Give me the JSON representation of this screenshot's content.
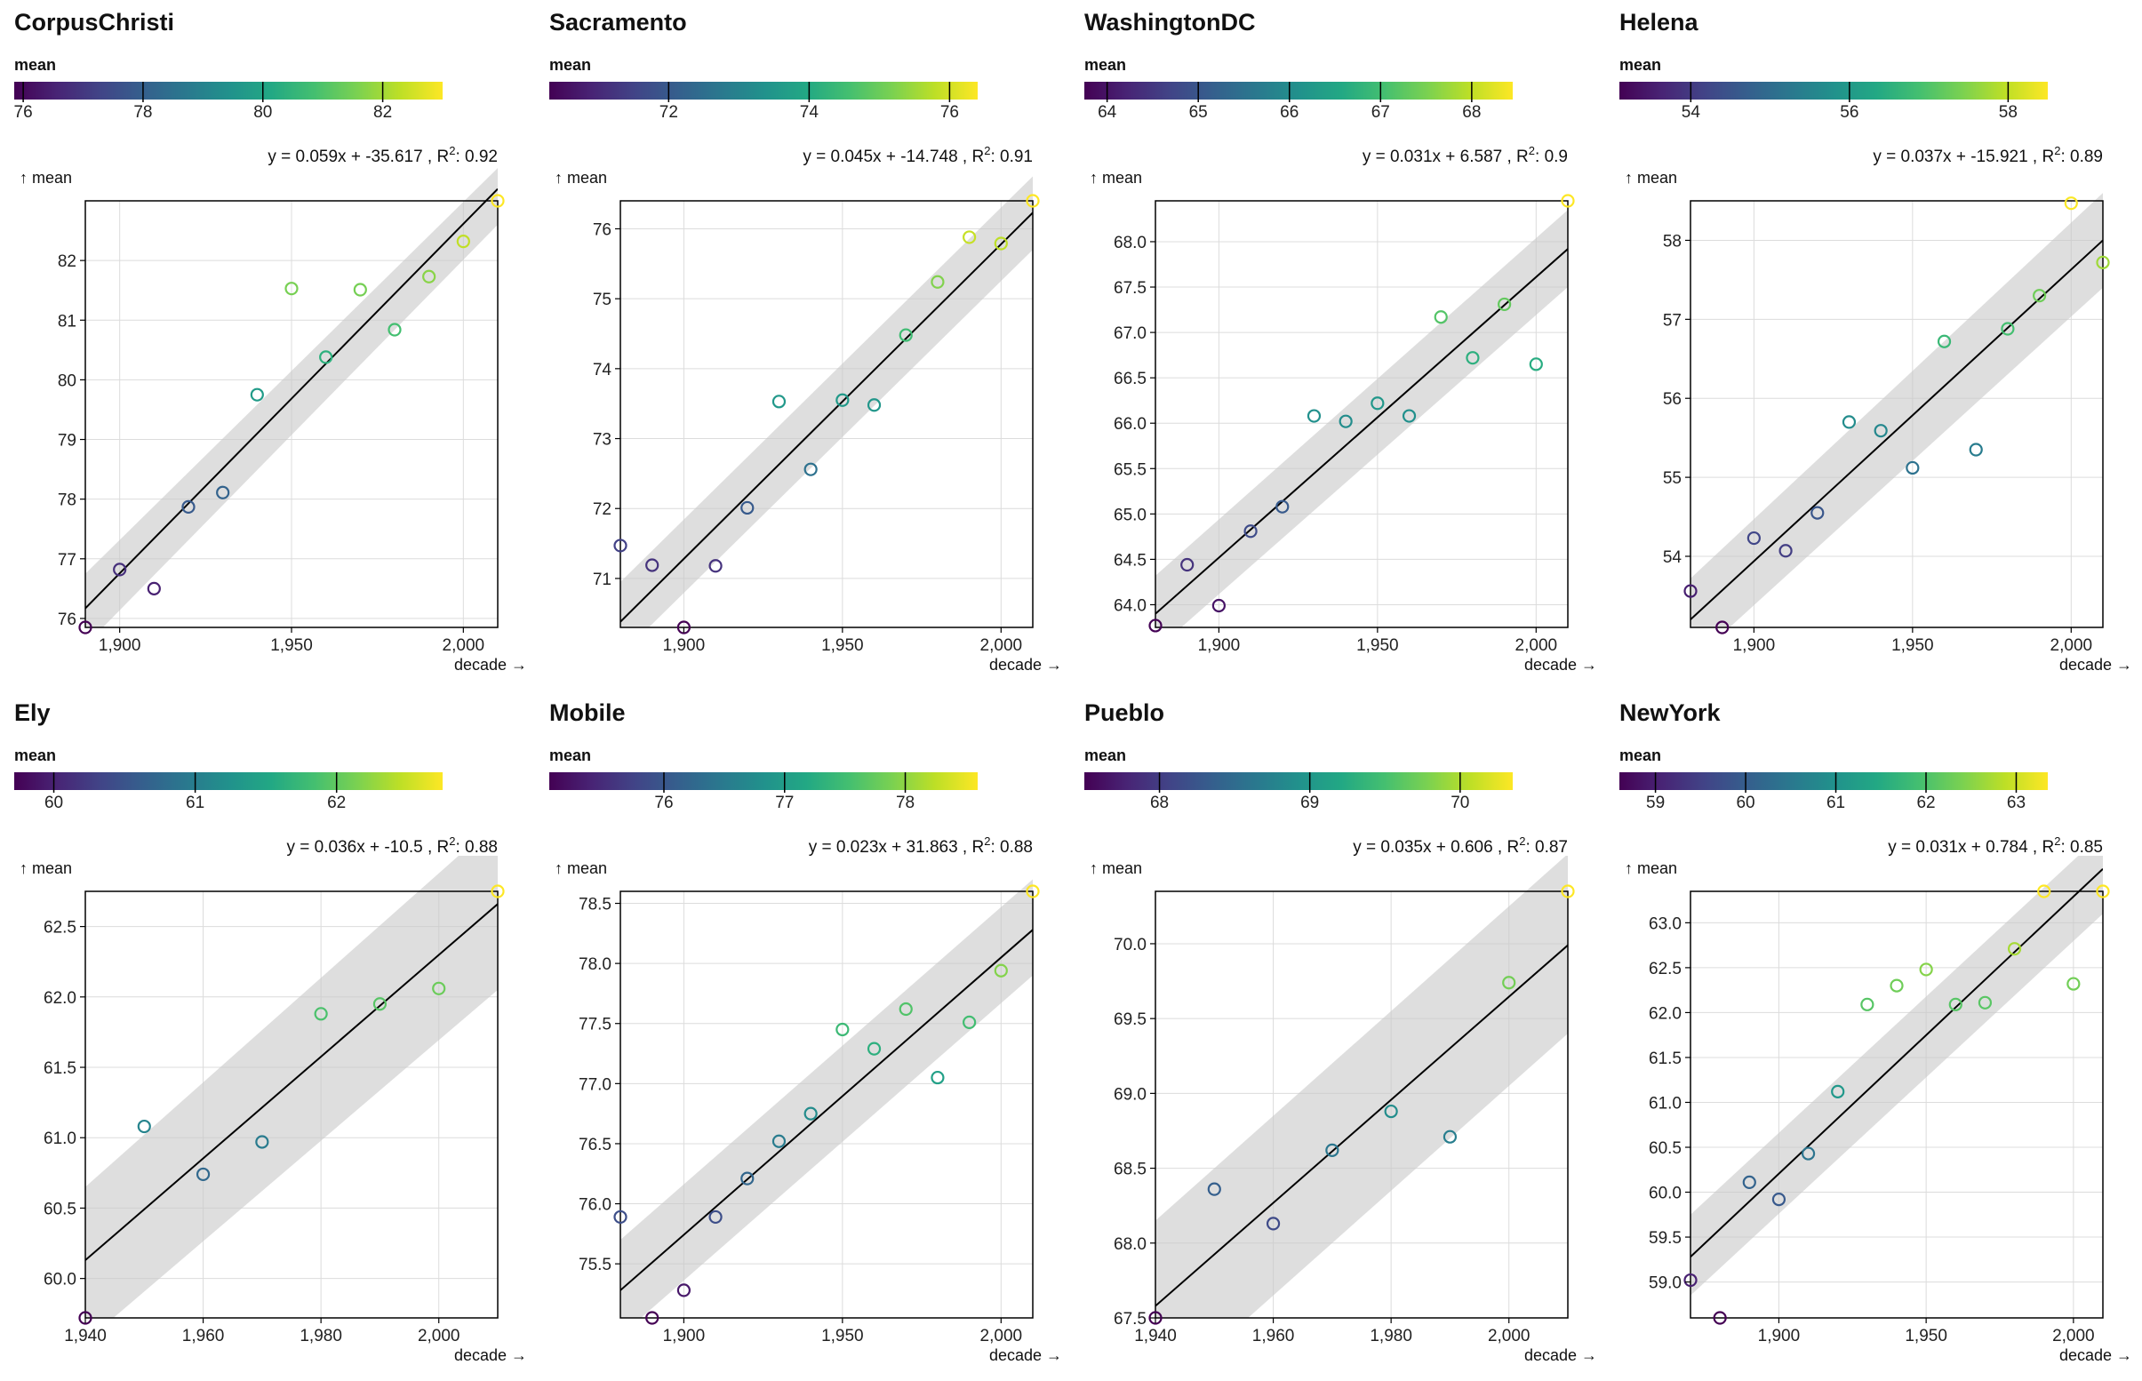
{
  "chart_data": [
    {
      "type": "scatter",
      "title": "CorpusChristi",
      "colorbar_label": "mean",
      "colorbar_ticks": [
        76,
        78,
        80,
        82
      ],
      "colorbar_range": [
        75.85,
        83.0
      ],
      "equation": "y = 0.059x + -35.617 , R",
      "r2": "0.92",
      "ylabel": "↑ mean",
      "xlabel": "decade →",
      "xlim": [
        1890,
        2010
      ],
      "ylim": [
        75.85,
        83.0
      ],
      "xticks": [
        1900,
        1950,
        2000
      ],
      "yticks": [
        76,
        77,
        78,
        79,
        80,
        81,
        82
      ],
      "x": [
        1890,
        1900,
        1910,
        1920,
        1930,
        1940,
        1950,
        1960,
        1970,
        1980,
        1990,
        2000,
        2010
      ],
      "y": [
        75.85,
        76.82,
        76.5,
        77.87,
        78.11,
        79.75,
        81.53,
        80.38,
        81.51,
        80.84,
        81.73,
        82.32,
        83.0
      ],
      "fit": {
        "x0": 1890,
        "y0": 76.17,
        "x1": 2010,
        "y1": 83.2
      },
      "band": {
        "lo0": 75.55,
        "hi0": 76.75,
        "lo1": 82.6,
        "hi1": 83.55
      }
    },
    {
      "type": "scatter",
      "title": "Sacramento",
      "colorbar_label": "mean",
      "colorbar_ticks": [
        72,
        74,
        76
      ],
      "colorbar_range": [
        70.3,
        76.4
      ],
      "equation": "y = 0.045x + -14.748 , R",
      "r2": "0.91",
      "ylabel": "↑ mean",
      "xlabel": "decade →",
      "xlim": [
        1880,
        2010
      ],
      "ylim": [
        70.3,
        76.4
      ],
      "xticks": [
        1900,
        1950,
        2000
      ],
      "yticks": [
        71,
        72,
        73,
        74,
        75,
        76
      ],
      "x": [
        1880,
        1890,
        1900,
        1910,
        1920,
        1930,
        1940,
        1950,
        1960,
        1970,
        1980,
        1990,
        2000,
        2010
      ],
      "y": [
        71.47,
        71.19,
        70.3,
        71.18,
        72.01,
        73.53,
        72.56,
        73.55,
        73.48,
        74.48,
        75.24,
        75.88,
        75.79,
        76.4
      ],
      "fit": {
        "x0": 1880,
        "y0": 70.38,
        "x1": 2010,
        "y1": 76.23
      },
      "band": {
        "lo0": 69.9,
        "hi0": 70.95,
        "lo1": 75.7,
        "hi1": 76.75
      }
    },
    {
      "type": "scatter",
      "title": "WashingtonDC",
      "colorbar_label": "mean",
      "colorbar_ticks": [
        64,
        65,
        66,
        67,
        68
      ],
      "colorbar_range": [
        63.75,
        68.45
      ],
      "equation": "y = 0.031x + 6.587 , R",
      "r2": "0.9",
      "ylabel": "↑ mean",
      "xlabel": "decade →",
      "xlim": [
        1880,
        2010
      ],
      "ylim": [
        63.75,
        68.45
      ],
      "xticks": [
        1900,
        1950,
        2000
      ],
      "yticks": [
        64.0,
        64.5,
        65.0,
        65.5,
        66.0,
        66.5,
        67.0,
        67.5,
        68.0
      ],
      "x": [
        1880,
        1890,
        1900,
        1910,
        1920,
        1930,
        1940,
        1950,
        1960,
        1970,
        1980,
        1990,
        2000,
        2010
      ],
      "y": [
        63.77,
        64.44,
        63.99,
        64.81,
        65.08,
        66.08,
        66.02,
        66.22,
        66.08,
        67.17,
        66.72,
        67.31,
        66.65,
        68.45
      ],
      "fit": {
        "x0": 1880,
        "y0": 63.9,
        "x1": 2010,
        "y1": 67.92
      },
      "band": {
        "lo0": 63.5,
        "hi0": 64.32,
        "lo1": 67.5,
        "hi1": 68.35
      }
    },
    {
      "type": "scatter",
      "title": "Helena",
      "colorbar_label": "mean",
      "colorbar_ticks": [
        54,
        56,
        58
      ],
      "colorbar_range": [
        53.1,
        58.5
      ],
      "equation": "y = 0.037x + -15.921 , R",
      "r2": "0.89",
      "ylabel": "↑ mean",
      "xlabel": "decade →",
      "xlim": [
        1880,
        2010
      ],
      "ylim": [
        53.1,
        58.5
      ],
      "xticks": [
        1900,
        1950,
        2000
      ],
      "yticks": [
        54,
        55,
        56,
        57,
        58
      ],
      "x": [
        1880,
        1890,
        1900,
        1910,
        1920,
        1930,
        1940,
        1950,
        1960,
        1970,
        1980,
        1990,
        2000,
        2010
      ],
      "y": [
        53.56,
        53.1,
        54.23,
        54.07,
        54.55,
        55.7,
        55.59,
        55.12,
        56.72,
        55.35,
        56.88,
        57.3,
        58.47,
        57.72
      ],
      "fit": {
        "x0": 1880,
        "y0": 53.2,
        "x1": 2010,
        "y1": 58.0
      },
      "band": {
        "lo0": 52.65,
        "hi0": 53.72,
        "lo1": 57.4,
        "hi1": 58.6
      }
    },
    {
      "type": "scatter",
      "title": "Ely",
      "colorbar_label": "mean",
      "colorbar_ticks": [
        60,
        61,
        62
      ],
      "colorbar_range": [
        59.72,
        62.75
      ],
      "equation": "y = 0.036x + -10.5 , R",
      "r2": "0.88",
      "ylabel": "↑ mean",
      "xlabel": "decade →",
      "xlim": [
        1940,
        2010
      ],
      "ylim": [
        59.72,
        62.75
      ],
      "xticks": [
        1940,
        1960,
        1980,
        2000
      ],
      "yticks": [
        60.0,
        60.5,
        61.0,
        61.5,
        62.0,
        62.5
      ],
      "x": [
        1940,
        1950,
        1960,
        1970,
        1980,
        1990,
        2000,
        2010
      ],
      "y": [
        59.72,
        61.08,
        60.74,
        60.97,
        61.88,
        61.95,
        62.06,
        62.75
      ],
      "fit": {
        "x0": 1940,
        "y0": 60.13,
        "x1": 2010,
        "y1": 62.66
      },
      "band": {
        "lo0": 59.55,
        "hi0": 60.65,
        "lo1": 62.05,
        "hi1": 63.25
      }
    },
    {
      "type": "scatter",
      "title": "Mobile",
      "colorbar_label": "mean",
      "colorbar_ticks": [
        76,
        77,
        78
      ],
      "colorbar_range": [
        75.05,
        78.6
      ],
      "equation": "y = 0.023x + 31.863 , R",
      "r2": "0.88",
      "ylabel": "↑ mean",
      "xlabel": "decade →",
      "xlim": [
        1880,
        2010
      ],
      "ylim": [
        75.05,
        78.6
      ],
      "xticks": [
        1900,
        1950,
        2000
      ],
      "yticks": [
        75.5,
        76.0,
        76.5,
        77.0,
        77.5,
        78.0,
        78.5
      ],
      "x": [
        1880,
        1890,
        1900,
        1910,
        1920,
        1930,
        1940,
        1950,
        1960,
        1970,
        1980,
        1990,
        2000,
        2010
      ],
      "y": [
        75.89,
        75.05,
        75.28,
        75.89,
        76.21,
        76.52,
        76.75,
        77.45,
        77.29,
        77.62,
        77.05,
        77.51,
        77.94,
        78.6
      ],
      "fit": {
        "x0": 1880,
        "y0": 75.28,
        "x1": 2010,
        "y1": 78.28
      },
      "band": {
        "lo0": 74.9,
        "hi0": 75.7,
        "lo1": 77.9,
        "hi1": 78.7
      }
    },
    {
      "type": "scatter",
      "title": "Pueblo",
      "colorbar_label": "mean",
      "colorbar_ticks": [
        68,
        69,
        70
      ],
      "colorbar_range": [
        67.5,
        70.35
      ],
      "equation": "y = 0.035x + 0.606 , R",
      "r2": "0.87",
      "ylabel": "↑ mean",
      "xlabel": "decade →",
      "xlim": [
        1940,
        2010
      ],
      "ylim": [
        67.5,
        70.35
      ],
      "xticks": [
        1940,
        1960,
        1980,
        2000
      ],
      "yticks": [
        67.5,
        68.0,
        68.5,
        69.0,
        69.5,
        70.0
      ],
      "x": [
        1940,
        1950,
        1960,
        1970,
        1980,
        1990,
        2000,
        2010
      ],
      "y": [
        67.5,
        68.36,
        68.13,
        68.62,
        68.88,
        68.71,
        69.74,
        70.35
      ],
      "fit": {
        "x0": 1940,
        "y0": 67.58,
        "x1": 2010,
        "y1": 69.99
      },
      "band": {
        "lo0": 66.95,
        "hi0": 68.15,
        "lo1": 69.4,
        "hi1": 70.6
      }
    },
    {
      "type": "scatter",
      "title": "NewYork",
      "colorbar_label": "mean",
      "colorbar_ticks": [
        59,
        60,
        61,
        62,
        63
      ],
      "colorbar_range": [
        58.6,
        63.35
      ],
      "equation": "y = 0.031x + 0.784 , R",
      "r2": "0.85",
      "ylabel": "↑ mean",
      "xlabel": "decade →",
      "xlim": [
        1870,
        2010
      ],
      "ylim": [
        58.6,
        63.35
      ],
      "xticks": [
        1900,
        1950,
        2000
      ],
      "yticks": [
        59.0,
        59.5,
        60.0,
        60.5,
        61.0,
        61.5,
        62.0,
        62.5,
        63.0
      ],
      "x": [
        1870,
        1880,
        1890,
        1900,
        1910,
        1920,
        1930,
        1940,
        1950,
        1960,
        1970,
        1980,
        1990,
        2000,
        2010
      ],
      "y": [
        59.02,
        58.6,
        60.11,
        59.92,
        60.43,
        61.12,
        62.09,
        62.3,
        62.48,
        62.09,
        62.11,
        62.71,
        63.35,
        62.32,
        63.35
      ],
      "fit": {
        "x0": 1870,
        "y0": 59.28,
        "x1": 2010,
        "y1": 63.6
      },
      "band": {
        "lo0": 58.85,
        "hi0": 59.75,
        "lo1": 63.1,
        "hi1": 64.0
      }
    }
  ]
}
